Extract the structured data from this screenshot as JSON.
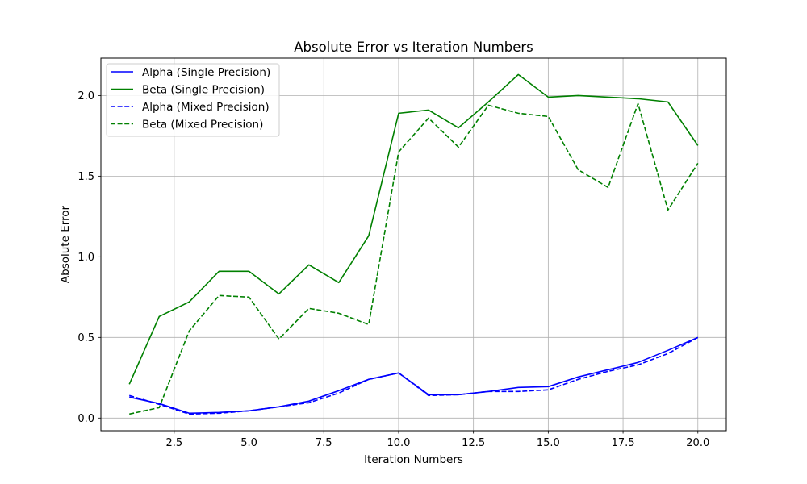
{
  "chart_data": {
    "type": "line",
    "title": "Absolute Error vs Iteration Numbers",
    "xlabel": "Iteration Numbers",
    "ylabel": "Absolute Error",
    "xlim": [
      0.05,
      20.95
    ],
    "ylim": [
      -0.0785,
      2.232
    ],
    "grid": true,
    "legend_position": "top-left",
    "x": [
      1,
      2,
      3,
      4,
      5,
      6,
      7,
      8,
      9,
      10,
      11,
      12,
      13,
      14,
      15,
      16,
      17,
      18,
      19,
      20
    ],
    "x_ticks": [
      {
        "value": 2.5,
        "label": "2.5"
      },
      {
        "value": 5.0,
        "label": "5.0"
      },
      {
        "value": 7.5,
        "label": "7.5"
      },
      {
        "value": 10.0,
        "label": "10.0"
      },
      {
        "value": 12.5,
        "label": "12.5"
      },
      {
        "value": 15.0,
        "label": "15.0"
      },
      {
        "value": 17.5,
        "label": "17.5"
      },
      {
        "value": 20.0,
        "label": "20.0"
      }
    ],
    "y_ticks": [
      {
        "value": 0.0,
        "label": "0.0"
      },
      {
        "value": 0.5,
        "label": "0.5"
      },
      {
        "value": 1.0,
        "label": "1.0"
      },
      {
        "value": 1.5,
        "label": "1.5"
      },
      {
        "value": 2.0,
        "label": "2.0"
      }
    ],
    "series": [
      {
        "name": "Alpha (Single Precision)",
        "color": "#0000ff",
        "dashed": false,
        "values": [
          0.13,
          0.09,
          0.03,
          0.035,
          0.045,
          0.07,
          0.105,
          0.17,
          0.24,
          0.28,
          0.145,
          0.145,
          0.165,
          0.19,
          0.195,
          0.255,
          0.3,
          0.345,
          0.42,
          0.5
        ]
      },
      {
        "name": "Beta (Single Precision)",
        "color": "#008000",
        "dashed": false,
        "values": [
          0.21,
          0.63,
          0.72,
          0.91,
          0.91,
          0.77,
          0.95,
          0.84,
          1.13,
          1.89,
          1.91,
          1.8,
          1.96,
          2.13,
          1.99,
          2.0,
          1.99,
          1.98,
          1.96,
          1.69
        ]
      },
      {
        "name": "Alpha (Mixed Precision)",
        "color": "#0000ff",
        "dashed": true,
        "values": [
          0.14,
          0.085,
          0.025,
          0.03,
          0.045,
          0.07,
          0.095,
          0.155,
          0.24,
          0.28,
          0.14,
          0.145,
          0.165,
          0.165,
          0.175,
          0.24,
          0.29,
          0.33,
          0.4,
          0.5
        ]
      },
      {
        "name": "Beta (Mixed Precision)",
        "color": "#008000",
        "dashed": true,
        "values": [
          0.025,
          0.065,
          0.54,
          0.76,
          0.75,
          0.49,
          0.68,
          0.65,
          0.58,
          1.65,
          1.86,
          1.68,
          1.94,
          1.89,
          1.87,
          1.54,
          1.43,
          1.95,
          1.29,
          1.58
        ]
      }
    ]
  }
}
